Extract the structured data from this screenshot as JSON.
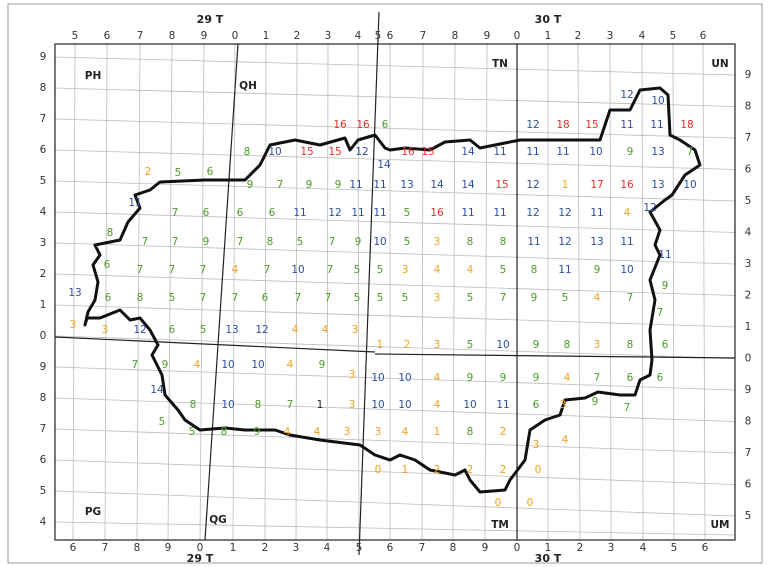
{
  "zones": {
    "top": [
      "29 T",
      "30 T"
    ],
    "bottom": [
      "29 T",
      "30 T"
    ]
  },
  "squares": [
    "PH",
    "QH",
    "TN",
    "UN",
    "PG",
    "QG",
    "TM",
    "UM"
  ],
  "top_labels": [
    5,
    6,
    7,
    8,
    9,
    0,
    1,
    2,
    3,
    4,
    5,
    6,
    7,
    8,
    9,
    0,
    1,
    2,
    3,
    4,
    5,
    6
  ],
  "bottom_labels": [
    6,
    7,
    8,
    9,
    0,
    1,
    2,
    3,
    4,
    5,
    6,
    7,
    8,
    9,
    0,
    1,
    2,
    3,
    4,
    5,
    6
  ],
  "left_labels": [
    9,
    8,
    7,
    6,
    5,
    4,
    3,
    2,
    1,
    0,
    9,
    8,
    7,
    6,
    5,
    4
  ],
  "right_labels": [
    9,
    8,
    7,
    6,
    5,
    4,
    3,
    2,
    1,
    0,
    9,
    8,
    7,
    6,
    5
  ],
  "palette": {
    "green": "#4f9a2a",
    "blue": "#2f4f9e",
    "red": "#e3302b",
    "orange": "#f0a21e",
    "black": "#222222"
  },
  "cells": {
    "rows": [
      {
        "values": [
          12,
          10
        ],
        "colors": [
          "blue",
          "blue"
        ]
      },
      {
        "values": [
          16,
          16,
          6,
          12,
          18,
          15,
          11,
          11,
          18
        ],
        "colors": [
          "red",
          "red",
          "green",
          "blue",
          "red",
          "red",
          "blue",
          "blue",
          "red"
        ]
      },
      {
        "values": [
          8,
          10,
          15,
          15,
          12,
          14,
          16,
          15,
          14,
          11,
          11,
          11,
          10,
          9,
          13,
          7
        ],
        "colors": [
          "green",
          "blue",
          "red",
          "red",
          "blue",
          "blue",
          "red",
          "red",
          "blue",
          "blue",
          "blue",
          "blue",
          "blue",
          "green",
          "blue",
          "green"
        ]
      },
      {
        "values": [
          2,
          5,
          6,
          9,
          7,
          9,
          9,
          11,
          11,
          13,
          14,
          14,
          15,
          12,
          1,
          17,
          16,
          13,
          10
        ],
        "colors": [
          "orange",
          "green",
          "green",
          "green",
          "green",
          "green",
          "green",
          "blue",
          "blue",
          "blue",
          "blue",
          "blue",
          "red",
          "blue",
          "orange",
          "red",
          "red",
          "blue",
          "blue"
        ]
      },
      {
        "values": [
          11,
          7,
          6,
          6,
          6,
          11,
          12,
          11,
          11,
          5,
          16,
          11,
          11,
          12,
          12,
          11,
          4,
          12
        ],
        "colors": [
          "blue",
          "green",
          "green",
          "green",
          "green",
          "blue",
          "blue",
          "blue",
          "blue",
          "green",
          "red",
          "blue",
          "blue",
          "blue",
          "blue",
          "blue",
          "orange",
          "blue"
        ]
      },
      {
        "values": [
          8,
          7,
          7,
          9,
          7,
          8,
          5,
          7,
          9,
          10,
          5,
          3,
          8,
          8,
          11,
          12,
          13,
          11,
          11
        ],
        "colors": [
          "green",
          "green",
          "green",
          "green",
          "green",
          "green",
          "green",
          "green",
          "green",
          "blue",
          "green",
          "orange",
          "green",
          "green",
          "blue",
          "blue",
          "blue",
          "blue",
          "blue"
        ]
      },
      {
        "values": [
          6,
          7,
          7,
          7,
          4,
          7,
          10,
          7,
          5,
          5,
          3,
          4,
          4,
          5,
          8,
          11,
          9,
          10,
          9
        ],
        "colors": [
          "green",
          "green",
          "green",
          "green",
          "orange",
          "green",
          "blue",
          "green",
          "green",
          "green",
          "orange",
          "orange",
          "orange",
          "green",
          "green",
          "blue",
          "green",
          "blue",
          "green"
        ]
      },
      {
        "values": [
          13,
          6,
          8,
          5,
          7,
          7,
          6,
          7,
          7,
          5,
          5,
          5,
          3,
          5,
          7,
          9,
          5,
          4,
          7,
          7
        ],
        "colors": [
          "blue",
          "green",
          "green",
          "green",
          "green",
          "green",
          "green",
          "green",
          "green",
          "green",
          "green",
          "green",
          "orange",
          "green",
          "green",
          "green",
          "green",
          "orange",
          "green",
          "green"
        ]
      },
      {
        "values": [
          3,
          3,
          12,
          6,
          5,
          13,
          12,
          4,
          4,
          3
        ],
        "colors": [
          "orange",
          "orange",
          "blue",
          "green",
          "green",
          "blue",
          "blue",
          "orange",
          "orange",
          "orange"
        ]
      },
      {
        "values": [
          1,
          2,
          3,
          5,
          10,
          9,
          8,
          3,
          8,
          6
        ],
        "colors": [
          "orange",
          "orange",
          "orange",
          "green",
          "blue",
          "green",
          "green",
          "orange",
          "green",
          "green"
        ]
      },
      {
        "values": [
          7,
          9,
          4,
          10,
          10,
          4,
          9,
          3
        ],
        "colors": [
          "green",
          "green",
          "orange",
          "blue",
          "blue",
          "orange",
          "green",
          "orange"
        ]
      },
      {
        "values": [
          10,
          10,
          4,
          9,
          9,
          9,
          4,
          7,
          6,
          6
        ],
        "colors": [
          "blue",
          "blue",
          "orange",
          "green",
          "green",
          "green",
          "orange",
          "green",
          "green",
          "green"
        ]
      },
      {
        "values": [
          14,
          8,
          10,
          8,
          7,
          1,
          3,
          10,
          10,
          4,
          10,
          11,
          6,
          3,
          9,
          7
        ],
        "colors": [
          "blue",
          "green",
          "blue",
          "green",
          "green",
          "black",
          "orange",
          "blue",
          "blue",
          "orange",
          "blue",
          "blue",
          "green",
          "orange",
          "green",
          "green"
        ]
      },
      {
        "values": [
          5,
          5,
          8,
          9,
          4,
          4,
          3,
          3,
          4,
          1,
          8,
          2,
          3,
          4
        ],
        "colors": [
          "green",
          "green",
          "green",
          "green",
          "orange",
          "orange",
          "orange",
          "orange",
          "orange",
          "orange",
          "green",
          "orange",
          "orange",
          "orange"
        ]
      },
      {
        "values": [
          0,
          1,
          2,
          2,
          2,
          0
        ],
        "colors": [
          "orange",
          "orange",
          "orange",
          "orange",
          "orange",
          "orange"
        ]
      },
      {
        "values": [
          0,
          0
        ],
        "colors": [
          "orange",
          "orange"
        ]
      }
    ]
  }
}
